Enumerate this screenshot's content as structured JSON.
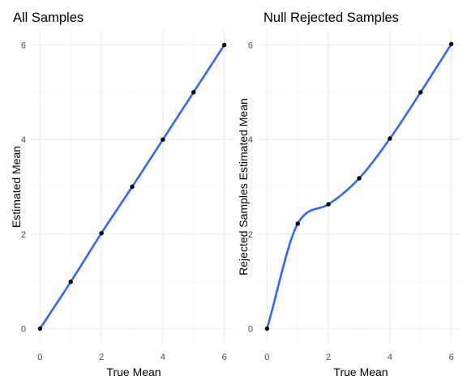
{
  "colors": {
    "line": "#3366ff",
    "point": "#000000"
  },
  "chart_data": [
    {
      "type": "line",
      "title": "All Samples",
      "xlabel": "True Mean",
      "ylabel": "Estimated Mean",
      "xlim": [
        -0.3,
        6.3
      ],
      "ylim": [
        -0.3,
        6.3
      ],
      "x_ticks": [
        "0",
        "2",
        "4",
        "6"
      ],
      "y_ticks": [
        "0",
        "2",
        "4",
        "6"
      ],
      "grid": true,
      "points": {
        "x": [
          0,
          1,
          2,
          3,
          4,
          5,
          6
        ],
        "y": [
          0.0,
          0.99,
          2.02,
          3.0,
          4.0,
          5.0,
          6.0
        ]
      },
      "smooth_line": true
    },
    {
      "type": "line",
      "title": "Null Rejected Samples",
      "xlabel": "True Mean",
      "ylabel": "Rejected Samples Estimated Mean",
      "xlim": [
        -0.3,
        6.3
      ],
      "ylim": [
        -0.3,
        6.3
      ],
      "x_ticks": [
        "0",
        "2",
        "4",
        "6"
      ],
      "y_ticks": [
        "0",
        "2",
        "4",
        "6"
      ],
      "grid": true,
      "points": {
        "x": [
          0,
          1,
          2,
          3,
          4,
          5,
          6
        ],
        "y": [
          0.0,
          2.22,
          2.63,
          3.18,
          4.02,
          5.0,
          6.02
        ]
      },
      "smooth_line": true
    }
  ]
}
